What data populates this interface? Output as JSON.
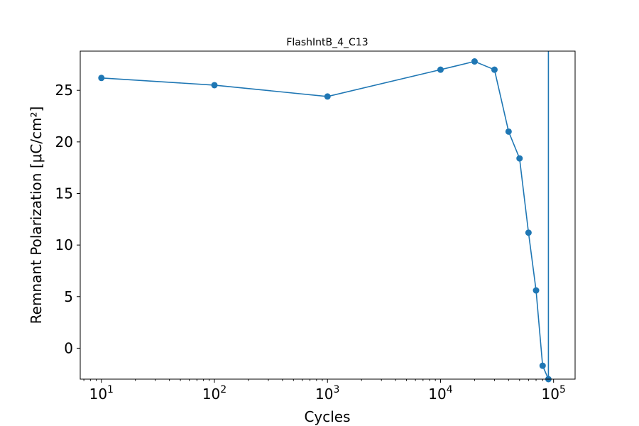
{
  "chart_data": {
    "type": "line",
    "title": "FlashIntB_4_C13",
    "xlabel": "Cycles",
    "ylabel": "Remnant Polarization [μC/cm²]",
    "x_scale": "log",
    "xlim": [
      6.5,
      155000
    ],
    "ylim": [
      -3.0,
      28.8
    ],
    "x_ticks": [
      {
        "base": "10",
        "exp": "1",
        "value": 10
      },
      {
        "base": "10",
        "exp": "2",
        "value": 100
      },
      {
        "base": "10",
        "exp": "3",
        "value": 1000
      },
      {
        "base": "10",
        "exp": "4",
        "value": 10000
      },
      {
        "base": "10",
        "exp": "5",
        "value": 100000
      }
    ],
    "y_ticks": [
      {
        "label": "0",
        "value": 0
      },
      {
        "label": "5",
        "value": 5
      },
      {
        "label": "10",
        "value": 10
      },
      {
        "label": "15",
        "value": 15
      },
      {
        "label": "20",
        "value": 20
      },
      {
        "label": "25",
        "value": 25
      }
    ],
    "grid": false,
    "color": "#1f77b4",
    "series": [
      {
        "x": [
          10,
          100,
          1000,
          10000,
          20000,
          30000,
          40000,
          50000,
          60000,
          70000,
          80000,
          90000,
          90000
        ],
        "y": [
          26.2,
          25.5,
          24.4,
          27.0,
          27.8,
          27.0,
          21.0,
          18.4,
          11.2,
          5.6,
          -1.7,
          -3.0,
          28.8
        ],
        "markers": [
          true,
          true,
          true,
          true,
          true,
          true,
          true,
          true,
          true,
          true,
          true,
          true,
          false
        ]
      }
    ]
  }
}
